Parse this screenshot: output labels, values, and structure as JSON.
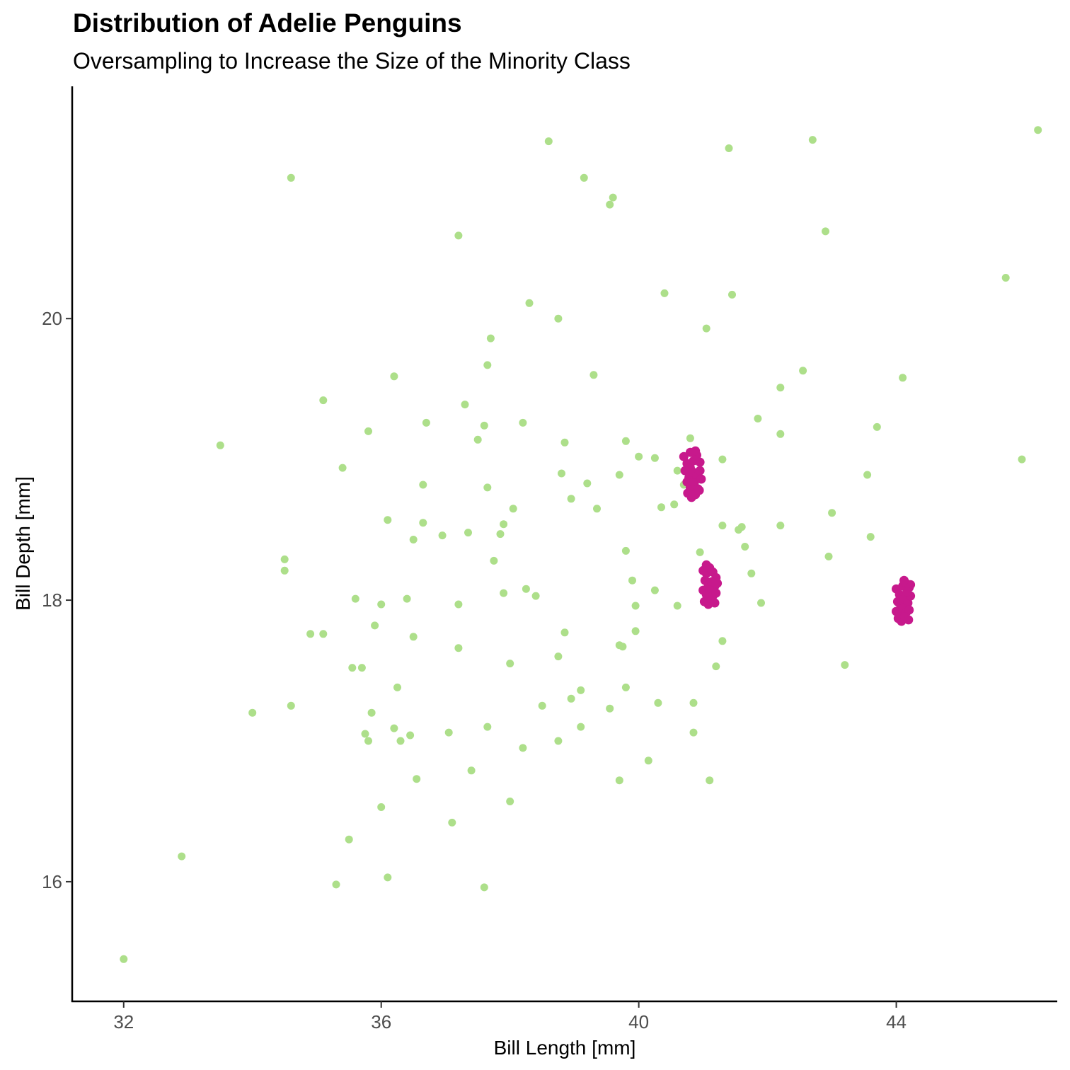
{
  "chart_data": {
    "type": "scatter",
    "title": "Distribution of Adelie Penguins",
    "subtitle": "Oversampling to Increase the Size of the Minority Class",
    "xlabel": "Bill Length [mm]",
    "ylabel": "Bill Depth [mm]",
    "xlim": [
      31.2,
      46.5
    ],
    "ylim": [
      15.15,
      21.65
    ],
    "x_ticks": [
      32,
      36,
      40,
      44
    ],
    "y_ticks": [
      16,
      18,
      20
    ],
    "grid": false,
    "legend": "none",
    "colors": {
      "original": "#addf8a",
      "oversampled": "#c7198c"
    },
    "series": [
      {
        "color": "#addf8a",
        "points": [
          [
            32.0,
            15.45
          ],
          [
            32.9,
            16.18
          ],
          [
            33.5,
            19.1
          ],
          [
            34.0,
            17.2
          ],
          [
            34.5,
            18.21
          ],
          [
            34.5,
            18.29
          ],
          [
            34.6,
            17.25
          ],
          [
            34.6,
            21.0
          ],
          [
            34.9,
            17.76
          ],
          [
            35.1,
            17.76
          ],
          [
            35.1,
            19.42
          ],
          [
            35.3,
            15.98
          ],
          [
            35.4,
            18.94
          ],
          [
            35.5,
            16.3
          ],
          [
            35.55,
            17.52
          ],
          [
            35.6,
            18.01
          ],
          [
            35.7,
            17.52
          ],
          [
            35.75,
            17.05
          ],
          [
            35.8,
            17.0
          ],
          [
            35.8,
            19.2
          ],
          [
            35.85,
            17.2
          ],
          [
            35.9,
            17.82
          ],
          [
            36.0,
            16.53
          ],
          [
            36.0,
            17.97
          ],
          [
            36.1,
            18.57
          ],
          [
            36.1,
            16.03
          ],
          [
            36.2,
            17.09
          ],
          [
            36.2,
            19.59
          ],
          [
            36.25,
            17.38
          ],
          [
            36.3,
            17.0
          ],
          [
            36.4,
            18.01
          ],
          [
            36.45,
            17.04
          ],
          [
            36.5,
            18.43
          ],
          [
            36.5,
            17.74
          ],
          [
            36.55,
            16.73
          ],
          [
            36.65,
            18.55
          ],
          [
            36.65,
            18.82
          ],
          [
            36.7,
            19.26
          ],
          [
            36.95,
            18.46
          ],
          [
            37.05,
            17.06
          ],
          [
            37.1,
            16.42
          ],
          [
            37.2,
            17.97
          ],
          [
            37.2,
            17.66
          ],
          [
            37.2,
            20.59
          ],
          [
            37.3,
            19.39
          ],
          [
            37.35,
            18.48
          ],
          [
            37.4,
            16.79
          ],
          [
            37.5,
            19.14
          ],
          [
            37.6,
            19.24
          ],
          [
            37.6,
            15.96
          ],
          [
            37.65,
            18.8
          ],
          [
            37.65,
            17.1
          ],
          [
            37.65,
            19.67
          ],
          [
            37.7,
            19.86
          ],
          [
            37.75,
            18.28
          ],
          [
            37.85,
            18.47
          ],
          [
            37.9,
            18.54
          ],
          [
            37.9,
            18.05
          ],
          [
            38.0,
            17.55
          ],
          [
            38.0,
            16.57
          ],
          [
            38.05,
            18.65
          ],
          [
            38.2,
            16.95
          ],
          [
            38.2,
            19.26
          ],
          [
            38.25,
            18.08
          ],
          [
            38.3,
            20.11
          ],
          [
            38.4,
            18.03
          ],
          [
            38.5,
            17.25
          ],
          [
            38.6,
            21.26
          ],
          [
            38.75,
            17.6
          ],
          [
            38.75,
            20.0
          ],
          [
            38.75,
            17.0
          ],
          [
            38.8,
            18.9
          ],
          [
            38.85,
            17.77
          ],
          [
            38.85,
            19.12
          ],
          [
            38.95,
            18.72
          ],
          [
            38.95,
            17.3
          ],
          [
            39.1,
            17.1
          ],
          [
            39.1,
            17.36
          ],
          [
            39.15,
            21.0
          ],
          [
            39.2,
            18.83
          ],
          [
            39.3,
            19.6
          ],
          [
            39.35,
            18.65
          ],
          [
            39.55,
            17.23
          ],
          [
            39.55,
            20.81
          ],
          [
            39.6,
            20.86
          ],
          [
            39.7,
            17.68
          ],
          [
            39.7,
            16.72
          ],
          [
            39.7,
            18.89
          ],
          [
            39.75,
            17.67
          ],
          [
            39.8,
            17.38
          ],
          [
            39.8,
            18.35
          ],
          [
            39.8,
            19.13
          ],
          [
            39.9,
            18.14
          ],
          [
            39.95,
            17.78
          ],
          [
            39.95,
            17.96
          ],
          [
            40.0,
            19.02
          ],
          [
            40.15,
            16.86
          ],
          [
            40.25,
            18.07
          ],
          [
            40.25,
            19.01
          ],
          [
            40.3,
            17.27
          ],
          [
            40.35,
            18.66
          ],
          [
            40.4,
            20.18
          ],
          [
            40.55,
            18.68
          ],
          [
            40.6,
            18.92
          ],
          [
            40.6,
            17.96
          ],
          [
            40.7,
            18.82
          ],
          [
            40.8,
            19.15
          ],
          [
            40.85,
            17.06
          ],
          [
            40.85,
            17.27
          ],
          [
            40.95,
            18.34
          ],
          [
            41.05,
            19.93
          ],
          [
            41.1,
            16.72
          ],
          [
            41.2,
            17.53
          ],
          [
            41.3,
            17.71
          ],
          [
            41.3,
            19.0
          ],
          [
            41.3,
            18.53
          ],
          [
            41.4,
            21.21
          ],
          [
            41.45,
            20.17
          ],
          [
            41.55,
            18.5
          ],
          [
            41.6,
            18.52
          ],
          [
            41.65,
            18.38
          ],
          [
            41.75,
            18.19
          ],
          [
            41.85,
            19.29
          ],
          [
            41.9,
            17.98
          ],
          [
            42.2,
            19.18
          ],
          [
            42.2,
            18.53
          ],
          [
            42.2,
            19.51
          ],
          [
            42.55,
            19.63
          ],
          [
            42.7,
            21.27
          ],
          [
            42.9,
            20.62
          ],
          [
            42.95,
            18.31
          ],
          [
            43.0,
            18.62
          ],
          [
            43.2,
            17.54
          ],
          [
            43.55,
            18.89
          ],
          [
            43.6,
            18.45
          ],
          [
            43.7,
            19.23
          ],
          [
            44.1,
            19.58
          ],
          [
            45.7,
            20.29
          ],
          [
            45.95,
            19.0
          ],
          [
            46.2,
            21.34
          ]
        ]
      },
      {
        "color": "#c7198c",
        "points": [
          [
            40.7,
            19.02
          ],
          [
            40.75,
            18.97
          ],
          [
            40.8,
            18.94
          ],
          [
            40.85,
            18.99
          ],
          [
            40.9,
            19.03
          ],
          [
            40.95,
            18.98
          ],
          [
            40.72,
            18.92
          ],
          [
            40.78,
            18.87
          ],
          [
            40.84,
            18.91
          ],
          [
            40.9,
            18.88
          ],
          [
            40.95,
            18.92
          ],
          [
            40.75,
            18.84
          ],
          [
            40.8,
            18.8
          ],
          [
            40.86,
            18.83
          ],
          [
            40.92,
            18.79
          ],
          [
            40.97,
            18.86
          ],
          [
            40.76,
            18.76
          ],
          [
            40.82,
            18.73
          ],
          [
            40.88,
            18.75
          ],
          [
            40.94,
            18.78
          ],
          [
            40.8,
            19.05
          ],
          [
            40.88,
            19.06
          ],
          [
            41.0,
            18.21
          ],
          [
            41.05,
            18.19
          ],
          [
            41.1,
            18.23
          ],
          [
            41.15,
            18.2
          ],
          [
            41.2,
            18.16
          ],
          [
            41.03,
            18.14
          ],
          [
            41.08,
            18.11
          ],
          [
            41.13,
            18.13
          ],
          [
            41.18,
            18.1
          ],
          [
            41.0,
            18.07
          ],
          [
            41.05,
            18.04
          ],
          [
            41.1,
            18.07
          ],
          [
            41.15,
            18.03
          ],
          [
            41.2,
            18.05
          ],
          [
            41.02,
            17.99
          ],
          [
            41.08,
            17.97
          ],
          [
            41.13,
            18.0
          ],
          [
            41.18,
            17.98
          ],
          [
            41.22,
            18.12
          ],
          [
            41.05,
            18.25
          ],
          [
            44.0,
            18.08
          ],
          [
            44.05,
            18.04
          ],
          [
            44.1,
            18.1
          ],
          [
            44.15,
            18.12
          ],
          [
            44.2,
            18.09
          ],
          [
            44.02,
            17.99
          ],
          [
            44.07,
            17.96
          ],
          [
            44.12,
            18.01
          ],
          [
            44.18,
            17.98
          ],
          [
            44.22,
            18.03
          ],
          [
            44.0,
            17.92
          ],
          [
            44.05,
            17.9
          ],
          [
            44.1,
            17.94
          ],
          [
            44.15,
            17.91
          ],
          [
            44.2,
            17.93
          ],
          [
            44.03,
            17.87
          ],
          [
            44.08,
            17.85
          ],
          [
            44.13,
            17.88
          ],
          [
            44.19,
            17.86
          ],
          [
            44.22,
            18.11
          ],
          [
            44.12,
            18.14
          ],
          [
            44.17,
            18.06
          ]
        ]
      }
    ]
  }
}
